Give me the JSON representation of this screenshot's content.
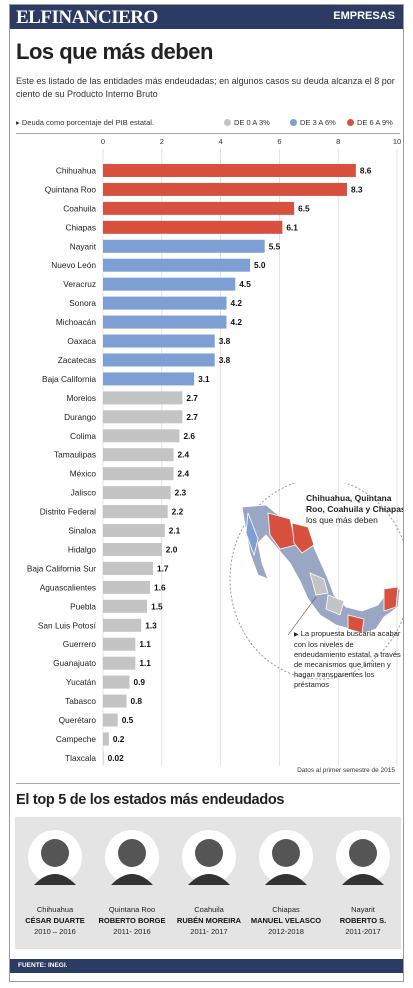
{
  "header": {
    "logo": "ELFINANCIERO",
    "section": "EMPRESAS"
  },
  "title": "Los que más deben",
  "intro": "Este es listado de las entidades más endeudadas; en algunos casos su deuda alcanza el 8 por ciento de su Producto Interno Bruto",
  "legend": {
    "note": "Deuda como porcentaje del PIB estatal.",
    "items": [
      {
        "label": "DE 0 A 3%",
        "color": "#c4c4c4"
      },
      {
        "label": "DE 3 A 6%",
        "color": "#7e9fd3"
      },
      {
        "label": "DE 6 A 9%",
        "color": "#d8503e"
      }
    ]
  },
  "chart_data": {
    "type": "bar",
    "orientation": "horizontal",
    "xlim": [
      0,
      10
    ],
    "ticks": [
      "0",
      "2",
      "4",
      "6",
      "8",
      "10"
    ],
    "grid": true,
    "categories": [
      "Chihuahua",
      "Quintana Roo",
      "Coahuila",
      "Chiapas",
      "Nayarit",
      "Nuevo León",
      "Veracruz",
      "Sonora",
      "Michoacán",
      "Oaxaca",
      "Zacatecas",
      "Baja California",
      "Morelos",
      "Durango",
      "Colima",
      "Tamaulipas",
      "México",
      "Jalisco",
      "Distrito Federal",
      "Sinaloa",
      "Hidalgo",
      "Baja California Sur",
      "Aguascalientes",
      "Puebla",
      "San Luis Potosí",
      "Guerrero",
      "Guanajuato",
      "Yucatán",
      "Tabasco",
      "Querétaro",
      "Campeche",
      "Tlaxcala"
    ],
    "values": [
      8.6,
      8.3,
      6.5,
      6.1,
      5.5,
      5.0,
      4.5,
      4.2,
      4.2,
      3.8,
      3.8,
      3.1,
      2.7,
      2.7,
      2.6,
      2.4,
      2.4,
      2.3,
      2.2,
      2.1,
      2.0,
      1.7,
      1.6,
      1.5,
      1.3,
      1.1,
      1.1,
      0.9,
      0.8,
      0.5,
      0.2,
      0.02
    ],
    "value_labels": [
      "8.6",
      "8.3",
      "6.5",
      "6.1",
      "5.5",
      "5.0",
      "4.5",
      "4.2",
      "4.2",
      "3.8",
      "3.8",
      "3.1",
      "2.7",
      "2.7",
      "2.6",
      "2.4",
      "2.4",
      "2.3",
      "2.2",
      "2.1",
      "2.0",
      "1.7",
      "1.6",
      "1.5",
      "1.3",
      "1.1",
      "1.1",
      "0.9",
      "0.8",
      "0.5",
      "0.2",
      "0.02"
    ],
    "colors": {
      "low": "#c4c4c4",
      "mid": "#7e9fd3",
      "high": "#d8503e"
    }
  },
  "map": {
    "title_bold": "Chihuahua, Quintana Roo, Coahuila y Chiapas",
    "title_rest": "los que más deben",
    "note": "La propuesta buscaría acabar con los niveles de endeudamiento estatal, a través de mecanismos que limiten y hagan transparentes los préstamos"
  },
  "footnote": "Datos al primer semestre de 2015",
  "top5": {
    "title": "El top 5 de los estados más endeudados",
    "people": [
      {
        "state": "Chihuahua",
        "name": "CÉSAR DUARTE",
        "period": "2010 – 2016"
      },
      {
        "state": "Quintana Roo",
        "name": "ROBERTO BORGE",
        "period": "2011- 2016"
      },
      {
        "state": "Coahuila",
        "name": "RUBÉN MOREIRA",
        "period": "2011- 2017"
      },
      {
        "state": "Chiapas",
        "name": "MANUEL VELASCO",
        "period": "2012-2018"
      },
      {
        "state": "Nayarit",
        "name": "ROBERTO S.",
        "period": "2011-2017"
      }
    ]
  },
  "source": "FUENTE: INEGI."
}
